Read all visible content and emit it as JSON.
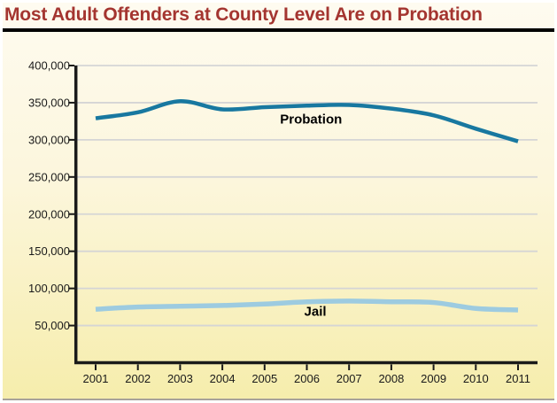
{
  "title": {
    "text": "Most Adult Offenders at County Level Are on Probation",
    "color": "#A43530"
  },
  "colors": {
    "background_top": "#FEFBF0",
    "background_mid": "#FCF6DC",
    "background_bottom": "#F6EDAC",
    "title_rule": "#000000",
    "axis": "#1A1A1A",
    "grid": "#D5D5D5",
    "tick_text": "#1A1A1A",
    "bottom_border": "#A8A29A"
  },
  "chart_data": {
    "type": "line",
    "title": "Most Adult Offenders at County Level Are on Probation",
    "xlabel": "",
    "ylabel": "",
    "x": [
      2001,
      2002,
      2003,
      2004,
      2005,
      2006,
      2007,
      2008,
      2009,
      2010,
      2011
    ],
    "x_tick_labels": [
      "2001",
      "2002",
      "2003",
      "2004",
      "2005",
      "2006",
      "2007",
      "2008",
      "2009",
      "2010",
      "2011"
    ],
    "series": [
      {
        "name": "Probation",
        "color": "#1878A0",
        "stroke_width": 4.5,
        "values": [
          329000,
          337000,
          352000,
          341000,
          344000,
          346000,
          347000,
          342000,
          333000,
          315000,
          298000
        ],
        "label": {
          "text": "Probation",
          "anchor_x": 2006.1,
          "anchor_y": 328000
        }
      },
      {
        "name": "Jail",
        "color": "#9DCBE0",
        "stroke_width": 5.5,
        "values": [
          72000,
          75000,
          76000,
          77000,
          79000,
          82000,
          83000,
          82000,
          81000,
          73000,
          71000
        ],
        "label": {
          "text": "Jail",
          "anchor_x": 2006.2,
          "anchor_y": 69000
        }
      }
    ],
    "ylim": [
      0,
      400000
    ],
    "yticks": [
      {
        "value": 50000,
        "label": "50,000"
      },
      {
        "value": 100000,
        "label": "100,000"
      },
      {
        "value": 150000,
        "label": "150,000"
      },
      {
        "value": 200000,
        "label": "200,000"
      },
      {
        "value": 250000,
        "label": "250,000"
      },
      {
        "value": 300000,
        "label": "300,000"
      },
      {
        "value": 350000,
        "label": "350,000"
      },
      {
        "value": 400000,
        "label": "400,000"
      }
    ],
    "grid": true,
    "legend_position": "inline-labels"
  }
}
